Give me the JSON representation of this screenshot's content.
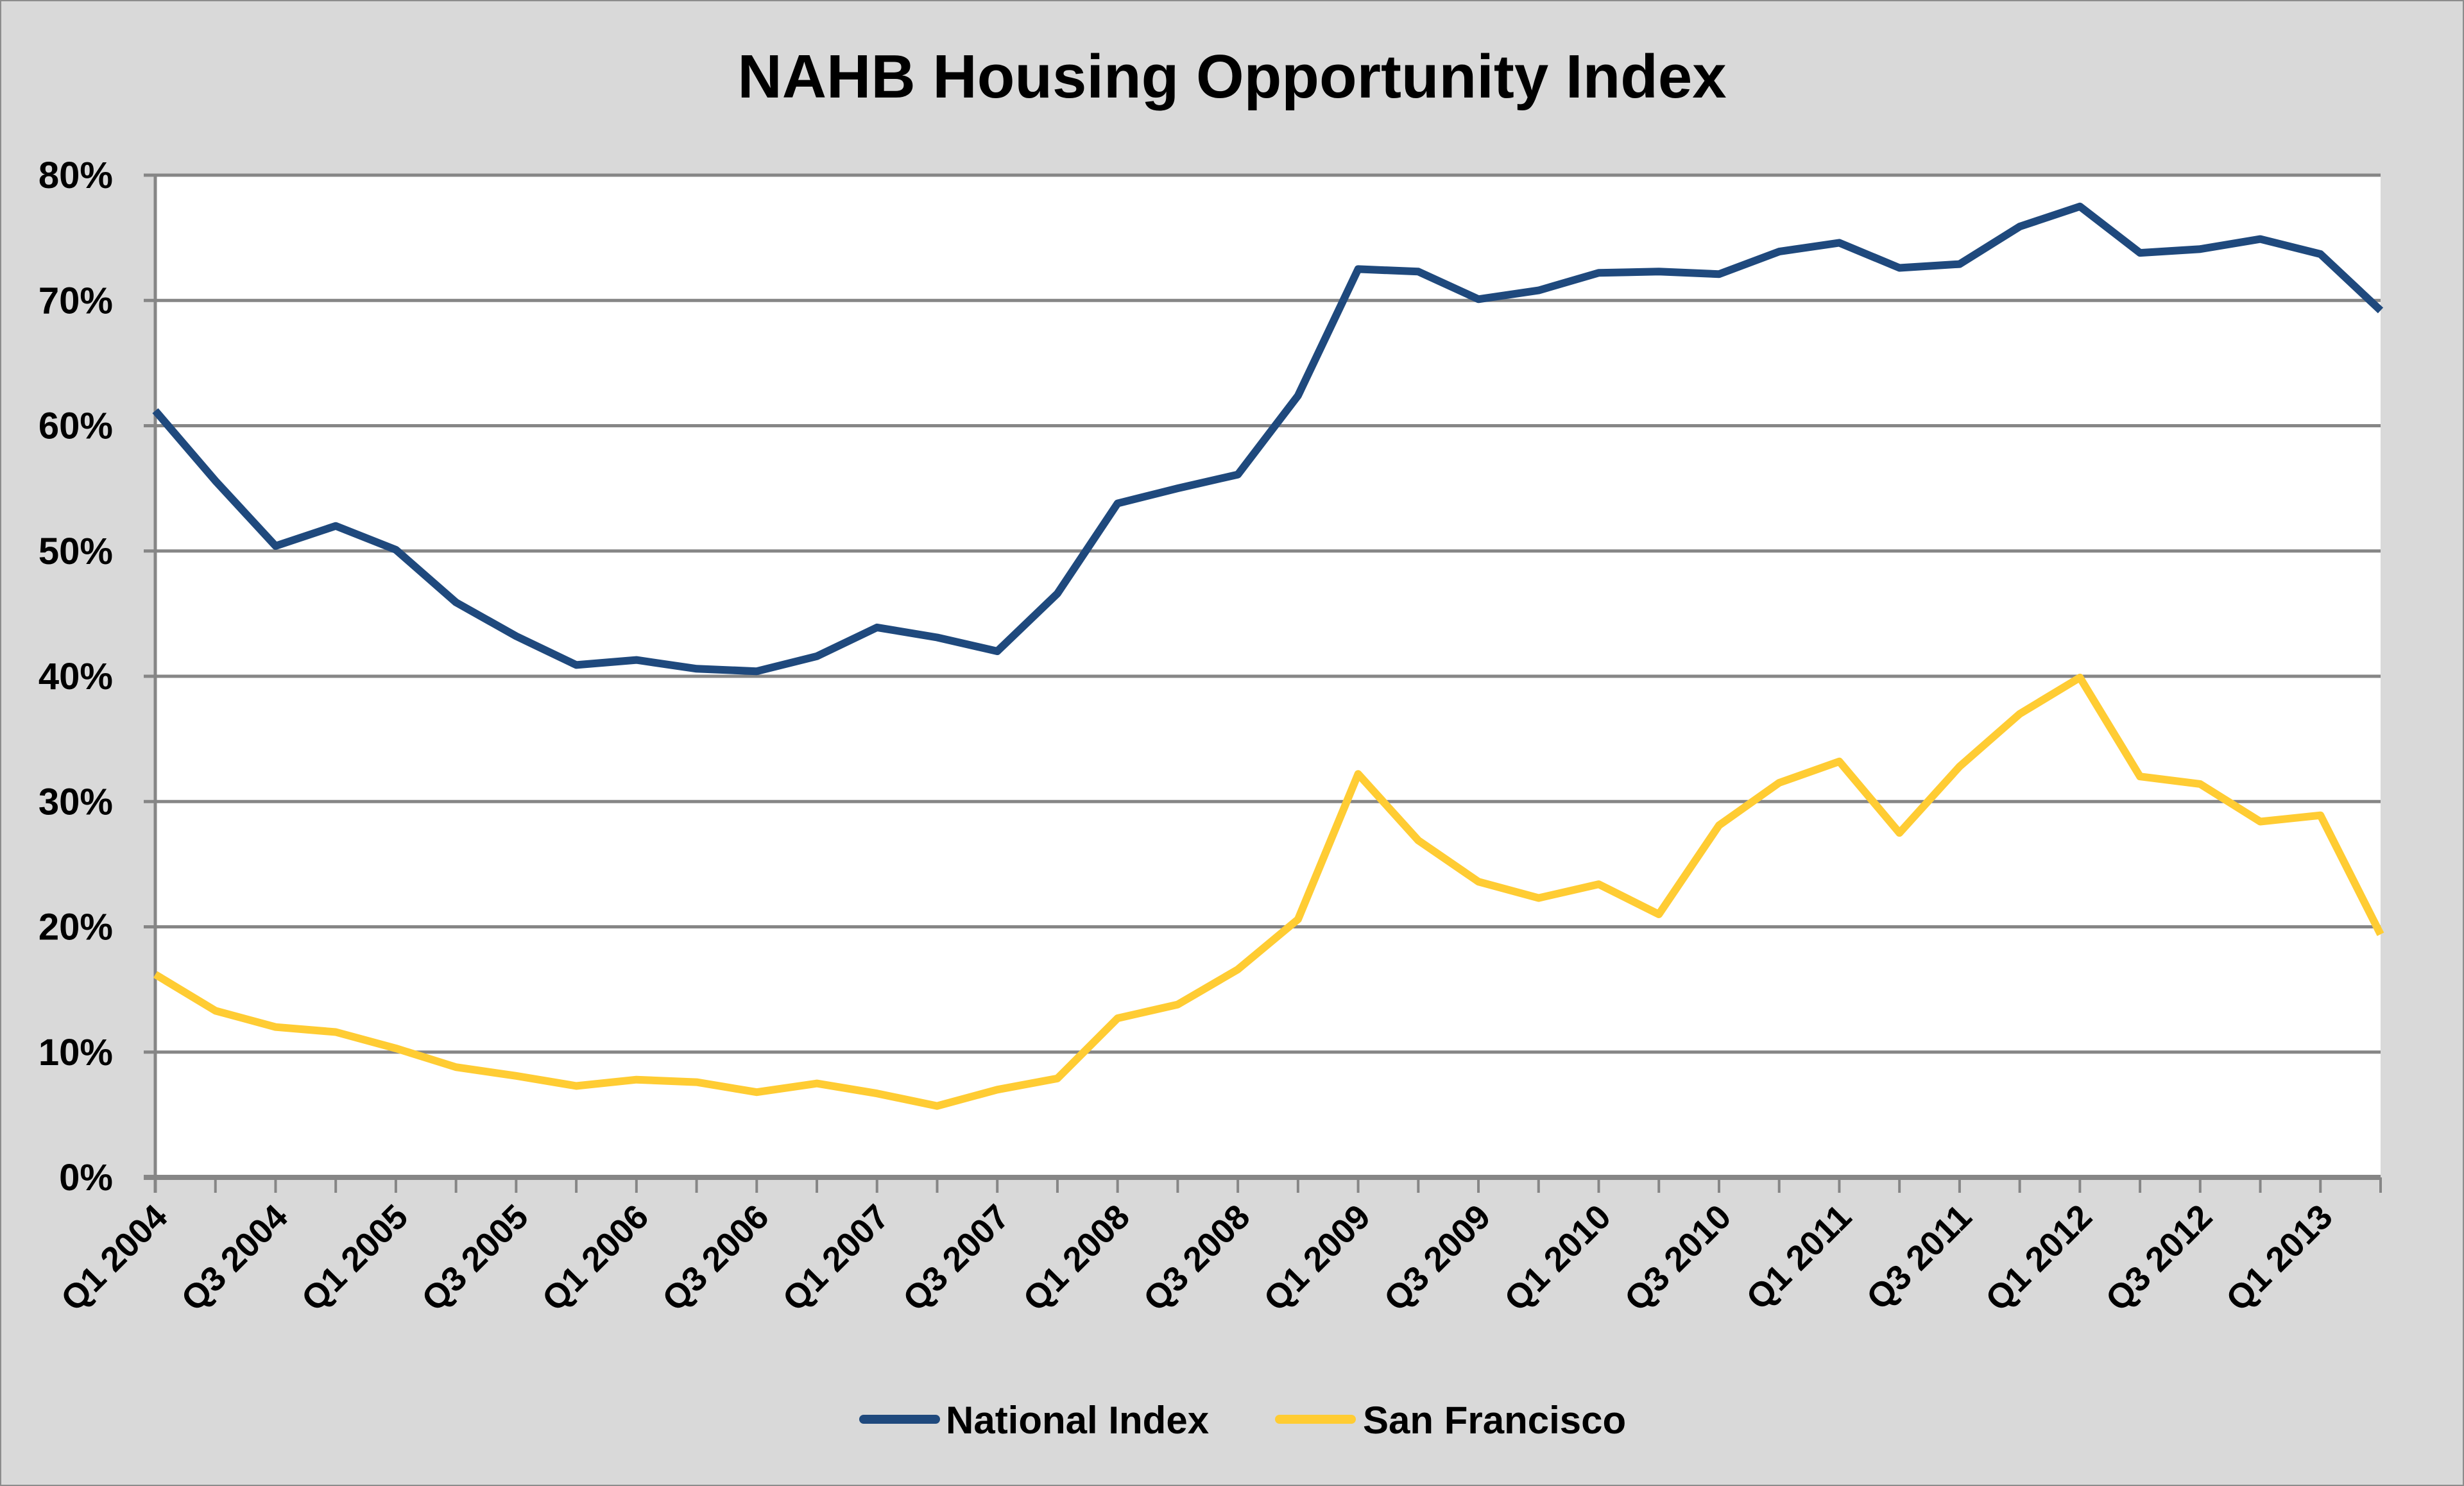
{
  "chart_data": {
    "type": "line",
    "title": "NAHB Housing Opportunity Index",
    "xlabel": "",
    "ylabel": "",
    "ylim": [
      0,
      0.8
    ],
    "y_ticks": [
      0,
      0.1,
      0.2,
      0.3,
      0.4,
      0.5,
      0.6,
      0.7,
      0.8
    ],
    "y_tick_labels": [
      "0%",
      "10%",
      "20%",
      "30%",
      "40%",
      "50%",
      "60%",
      "70%",
      "80%"
    ],
    "grid": true,
    "legend_position": "bottom",
    "x": [
      "Q1 2004",
      "Q2 2004",
      "Q3 2004",
      "Q4 2004",
      "Q1 2005",
      "Q2 2005",
      "Q3 2005",
      "Q4 2005",
      "Q1 2006",
      "Q2 2006",
      "Q3 2006",
      "Q4 2006",
      "Q1 2007",
      "Q2 2007",
      "Q3 2007",
      "Q4 2007",
      "Q1 2008",
      "Q2 2008",
      "Q3 2008",
      "Q4 2008",
      "Q1 2009",
      "Q2 2009",
      "Q3 2009",
      "Q4 2009",
      "Q1 2010",
      "Q2 2010",
      "Q3 2010",
      "Q4 2010",
      "Q1 2011",
      "Q2 2011",
      "Q3 2011",
      "Q4 2011",
      "Q1 2012",
      "Q2 2012",
      "Q3 2012",
      "Q4 2012",
      "Q1 2013",
      "Q2 2013"
    ],
    "x_tick_labels": [
      "Q1 2004",
      "Q3 2004",
      "Q1 2005",
      "Q3 2005",
      "Q1 2006",
      "Q3 2006",
      "Q1 2007",
      "Q3 2007",
      "Q1 2008",
      "Q3 2008",
      "Q1 2009",
      "Q3 2009",
      "Q1 2010",
      "Q3 2010",
      "Q1 2011",
      "Q3 2011",
      "Q1 2012",
      "Q3 2012",
      "Q1 2013"
    ],
    "series": [
      {
        "name": "National Index",
        "color": "#1f497d",
        "values": [
          0.612,
          0.556,
          0.504,
          0.52,
          0.501,
          0.459,
          0.432,
          0.409,
          0.413,
          0.406,
          0.404,
          0.416,
          0.439,
          0.431,
          0.42,
          0.466,
          0.538,
          0.55,
          0.561,
          0.624,
          0.725,
          0.723,
          0.701,
          0.708,
          0.722,
          0.723,
          0.721,
          0.739,
          0.746,
          0.726,
          0.729,
          0.759,
          0.775,
          0.738,
          0.741,
          0.749,
          0.737,
          0.692
        ]
      },
      {
        "name": "San Francisco",
        "color": "#ffcc33",
        "values": [
          0.162,
          0.133,
          0.12,
          0.116,
          0.103,
          0.088,
          0.081,
          0.073,
          0.078,
          0.076,
          0.068,
          0.075,
          0.067,
          0.057,
          0.07,
          0.079,
          0.127,
          0.138,
          0.166,
          0.206,
          0.322,
          0.269,
          0.236,
          0.223,
          0.234,
          0.21,
          0.281,
          0.315,
          0.332,
          0.275,
          0.328,
          0.37,
          0.399,
          0.32,
          0.314,
          0.284,
          0.289,
          0.194
        ]
      }
    ]
  }
}
